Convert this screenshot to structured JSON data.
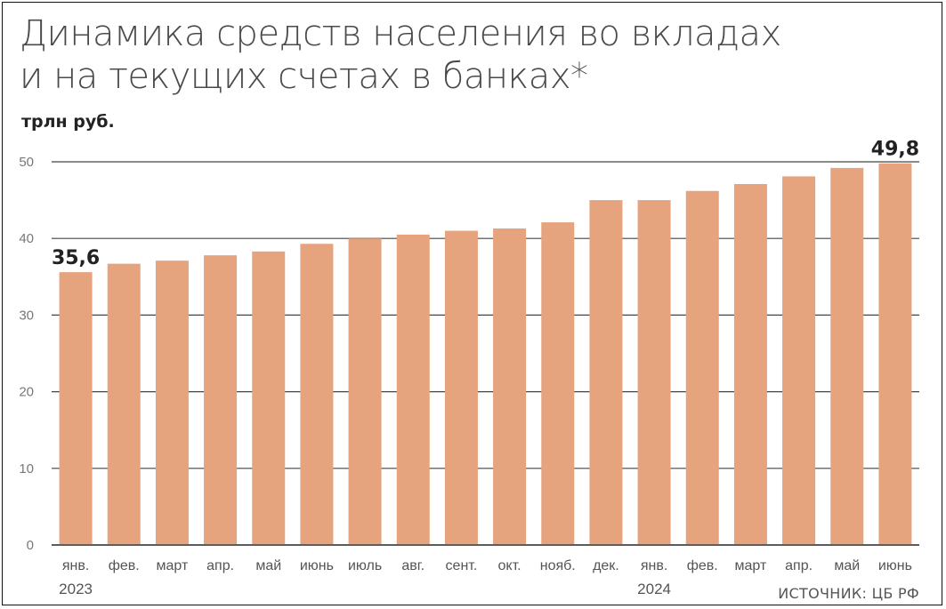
{
  "title_line1": "Динамика средств населения во вкладах",
  "title_line2": "и на текущих счетах в банках*",
  "unit": "трлн руб.",
  "source": "ИСТОЧНИК: ЦБ РФ",
  "colors": {
    "bar": "#e5a37e",
    "grid": "#444444"
  },
  "chart_data": {
    "type": "bar",
    "title": "Динамика средств населения во вкладах и на текущих счетах в банках*",
    "ylabel": "трлн руб.",
    "xlabel": "",
    "categories": [
      "янв.",
      "фев.",
      "март",
      "апр.",
      "май",
      "июнь",
      "июль",
      "авг.",
      "сент.",
      "окт.",
      "нояб.",
      "дек.",
      "янв.",
      "фев.",
      "март",
      "апр.",
      "май",
      "июнь"
    ],
    "values": [
      35.6,
      36.7,
      37.1,
      37.8,
      38.3,
      39.3,
      40.0,
      40.5,
      41.0,
      41.3,
      42.1,
      45.0,
      45.0,
      46.2,
      47.1,
      48.1,
      49.2,
      49.8
    ],
    "year_labels": [
      {
        "label": "2023",
        "index": 0
      },
      {
        "label": "2024",
        "index": 12
      }
    ],
    "data_labels": [
      {
        "index": 0,
        "text": "35,6"
      },
      {
        "index": 17,
        "text": "49,8"
      }
    ],
    "yticks": [
      0,
      10,
      20,
      30,
      40,
      50
    ],
    "ylim": [
      0,
      50
    ],
    "grid": true,
    "legend": "none"
  }
}
